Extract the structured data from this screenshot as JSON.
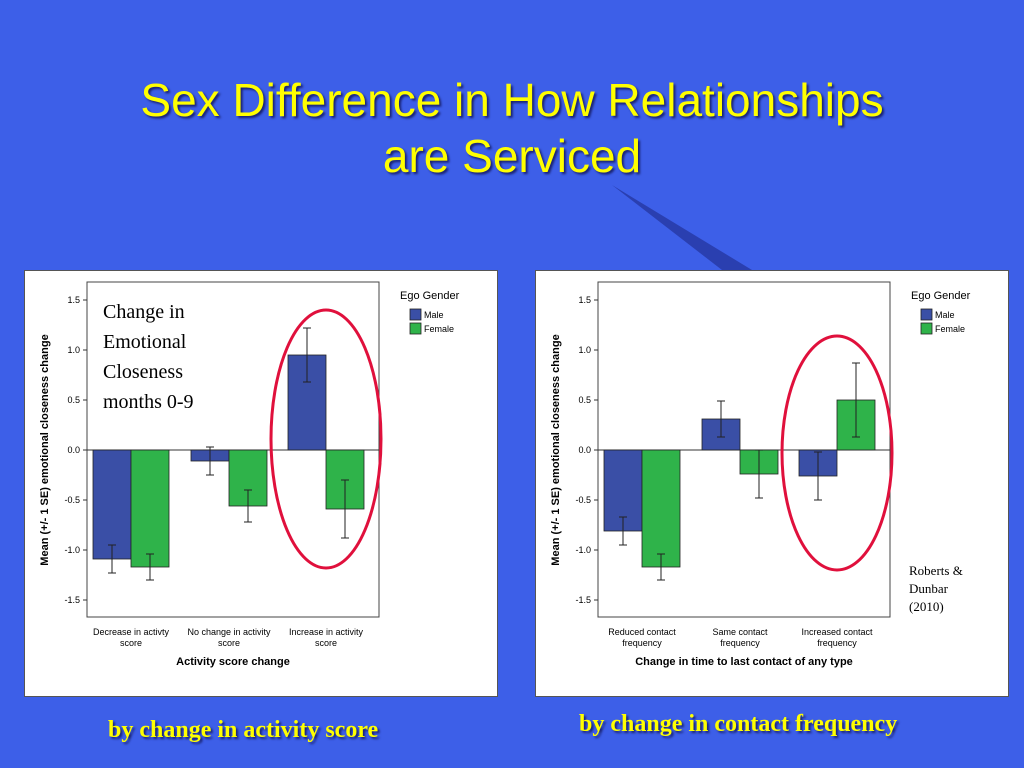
{
  "slide": {
    "title_line1": "Sex Difference in How Relationships",
    "title_line2": "are Serviced",
    "caption_left": "by change in activity score",
    "caption_right": "by change  in contact frequency",
    "chart_note": [
      "Change in",
      "Emotional",
      "Closeness",
      "months 0-9"
    ],
    "citation": [
      "Roberts &",
      "Dunbar",
      "(2010)"
    ]
  },
  "colors": {
    "background": "#3d5fe8",
    "title": "#ffff00",
    "male": "#3a4fa6",
    "female": "#2fb34a",
    "highlight_circle": "#e0103c"
  },
  "chart_data": [
    {
      "type": "bar",
      "title": "",
      "xlabel": "Activity score change",
      "ylabel": "Mean (+/- 1 SE) emotional closeness change",
      "ylim": [
        -1.5,
        1.5
      ],
      "yticks": [
        1.5,
        1.0,
        0.5,
        0.0,
        -0.5,
        -1.0,
        -1.5
      ],
      "ytick_labels": [
        "1.5",
        "1.0",
        "0.5",
        "0.0",
        "-0.5",
        "-1.0",
        "-1.5"
      ],
      "categories": [
        [
          "Decrease in activty",
          "score"
        ],
        [
          "No change in activity",
          "score"
        ],
        [
          "Increase in activity",
          "score"
        ]
      ],
      "legend": {
        "title": "Ego Gender",
        "position": "top-right"
      },
      "highlighted_category": 2,
      "series": [
        {
          "name": "Male",
          "values": [
            -1.09,
            -0.11,
            0.95
          ],
          "se": [
            0.14,
            0.14,
            0.27
          ]
        },
        {
          "name": "Female",
          "values": [
            -1.17,
            -0.56,
            -0.59
          ],
          "se": [
            0.13,
            0.16,
            0.29
          ]
        }
      ]
    },
    {
      "type": "bar",
      "title": "",
      "xlabel": "Change in time to last contact of any type",
      "ylabel": "Mean (+/- 1 SE) emotional closeness change",
      "ylim": [
        -1.5,
        1.5
      ],
      "yticks": [
        1.5,
        1.0,
        0.5,
        0.0,
        -0.5,
        -1.0,
        -1.5
      ],
      "ytick_labels": [
        "1.5",
        "1.0",
        "0.5",
        "0.0",
        "-0.5",
        "-1.0",
        "-1.5"
      ],
      "categories": [
        [
          "Reduced contact",
          "frequency"
        ],
        [
          "Same contact",
          "frequency"
        ],
        [
          "Increased contact",
          "frequency"
        ]
      ],
      "legend": {
        "title": "Ego Gender",
        "position": "top-right"
      },
      "highlighted_category": 2,
      "series": [
        {
          "name": "Male",
          "values": [
            -0.81,
            0.31,
            -0.26
          ],
          "se": [
            0.14,
            0.18,
            0.24
          ]
        },
        {
          "name": "Female",
          "values": [
            -1.17,
            -0.24,
            0.5
          ],
          "se": [
            0.13,
            0.24,
            0.37
          ]
        }
      ]
    }
  ]
}
